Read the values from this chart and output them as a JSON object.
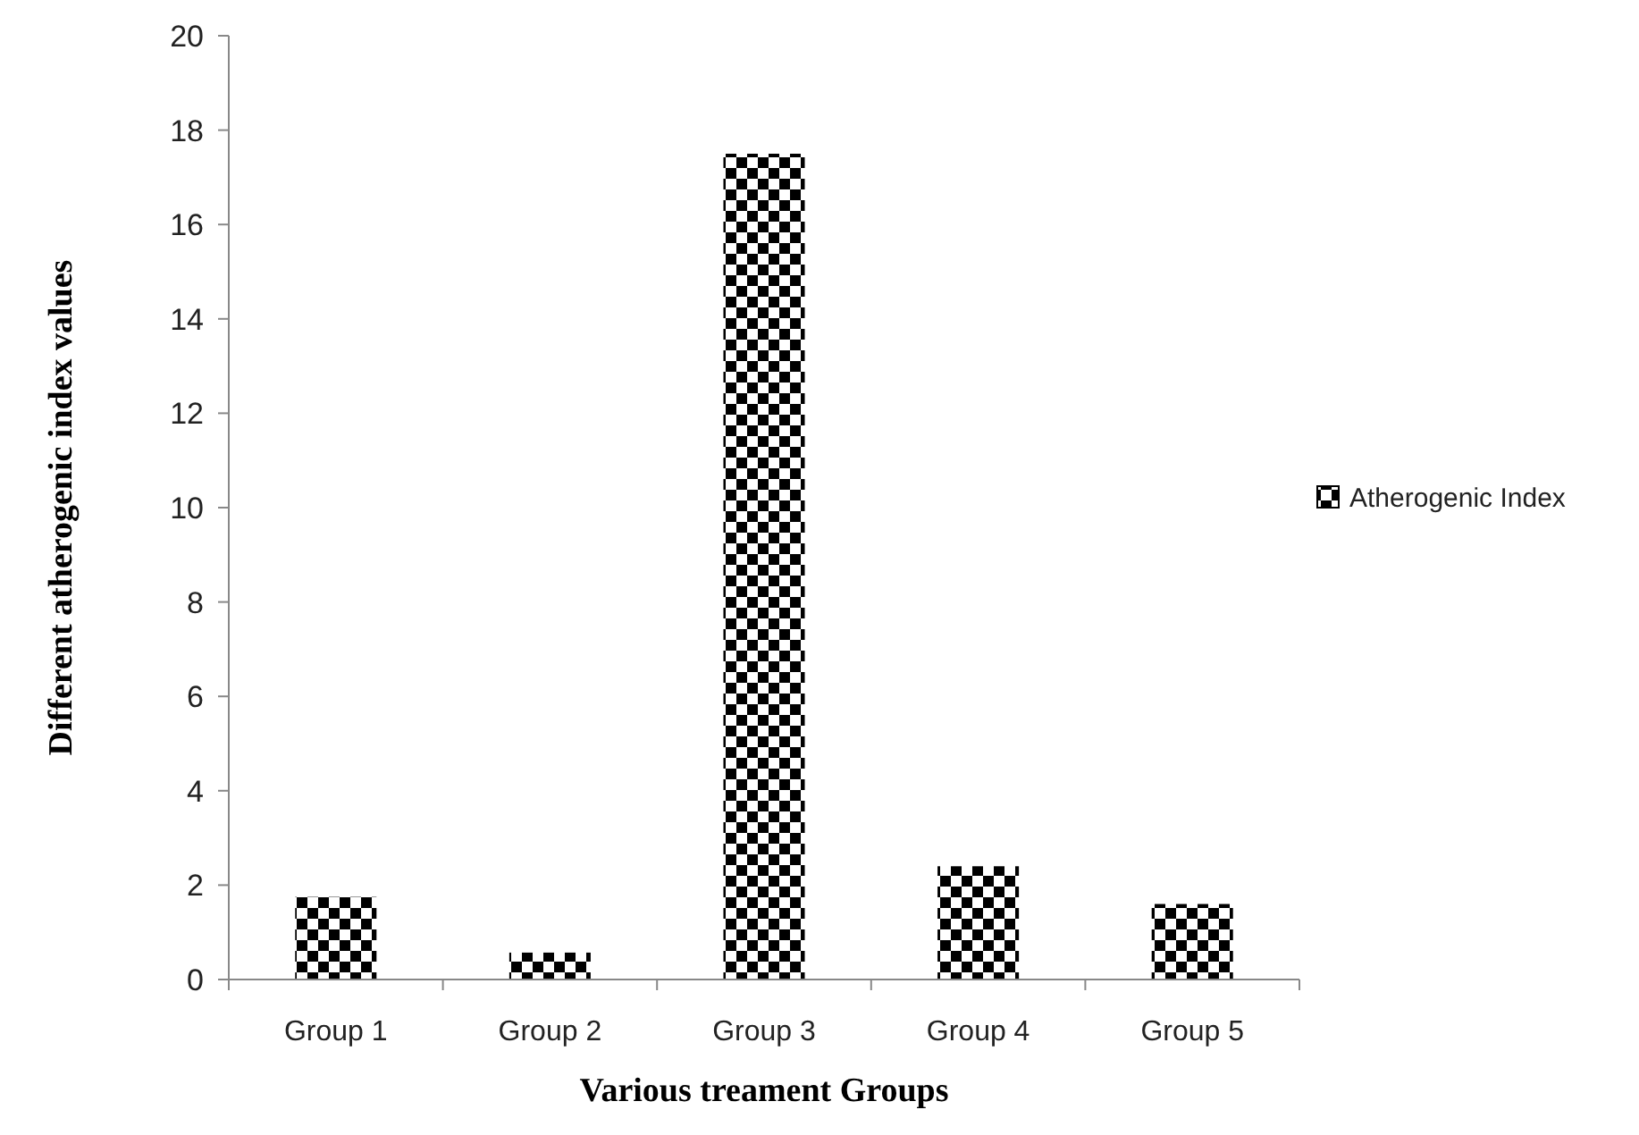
{
  "chart_data": {
    "type": "bar",
    "xlabel": "Various treament Groups",
    "ylabel": "Different atherogenic index values",
    "categories": [
      "Group 1",
      "Group 2",
      "Group 3",
      "Group 4",
      "Group 5"
    ],
    "series": [
      {
        "name": "Atherogenic Index",
        "color": "#000000",
        "values": [
          1.75,
          0.57,
          17.5,
          2.4,
          1.6
        ]
      }
    ],
    "ylim": [
      0,
      20
    ],
    "yticks": [
      0,
      2,
      4,
      6,
      8,
      10,
      12,
      14,
      16,
      18,
      20
    ],
    "grid": false,
    "legend": "right"
  }
}
